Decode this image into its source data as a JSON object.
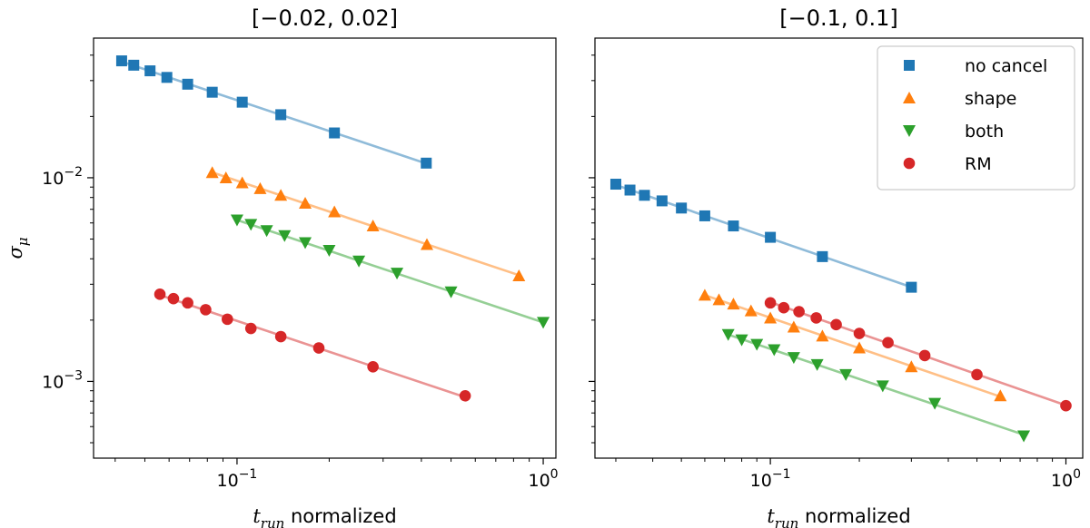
{
  "chart_data": [
    {
      "type": "scatter",
      "title": "[−0.02, 0.02]",
      "xscale": "log",
      "yscale": "log",
      "xlabel": "normalized",
      "xlabel_math": "t",
      "xlabel_math_sub": "run",
      "ylabel_math": "σ",
      "ylabel_math_sub": "μ",
      "xlim": [
        0.034,
        1.1
      ],
      "ylim": [
        0.00042,
        0.0485
      ],
      "x_ticks": [
        {
          "value": 0.1,
          "base": "10",
          "exp": "−1"
        },
        {
          "value": 1,
          "base": "10",
          "exp": "0"
        }
      ],
      "y_ticks": [
        {
          "value": 0.001,
          "base": "10",
          "exp": "−3"
        },
        {
          "value": 0.01,
          "base": "10",
          "exp": "−2"
        }
      ],
      "series": [
        {
          "name": "no cancel",
          "marker": "square",
          "color": "#1f77b4",
          "x": [
            0.042,
            0.046,
            0.052,
            0.059,
            0.069,
            0.083,
            0.104,
            0.139,
            0.208,
            0.415
          ],
          "y": [
            0.0375,
            0.0357,
            0.0335,
            0.0311,
            0.0288,
            0.0263,
            0.0235,
            0.0204,
            0.0166,
            0.0118
          ]
        },
        {
          "name": "shape",
          "marker": "triangle-up",
          "color": "#ff7f0e",
          "x": [
            0.083,
            0.092,
            0.104,
            0.119,
            0.139,
            0.167,
            0.208,
            0.278,
            0.417,
            0.833
          ],
          "y": [
            0.0106,
            0.01,
            0.00945,
            0.00885,
            0.0082,
            0.0075,
            0.0068,
            0.0058,
            0.0047,
            0.0033
          ]
        },
        {
          "name": "both",
          "marker": "triangle-down",
          "color": "#2ca02c",
          "x": [
            0.1,
            0.111,
            0.125,
            0.143,
            0.167,
            0.2,
            0.25,
            0.333,
            0.5,
            1.0
          ],
          "y": [
            0.0062,
            0.0059,
            0.0055,
            0.0052,
            0.0048,
            0.0044,
            0.0039,
            0.0034,
            0.00275,
            0.00195
          ]
        },
        {
          "name": "RM",
          "marker": "circle",
          "color": "#d62728",
          "x": [
            0.056,
            0.062,
            0.069,
            0.079,
            0.093,
            0.111,
            0.139,
            0.185,
            0.278,
            0.556
          ],
          "y": [
            0.00268,
            0.00255,
            0.00243,
            0.00225,
            0.00202,
            0.00182,
            0.00166,
            0.00146,
            0.00118,
            0.00085
          ]
        }
      ]
    },
    {
      "type": "scatter",
      "title": "[−0.1, 0.1]",
      "xscale": "log",
      "yscale": "log",
      "xlabel": "normalized",
      "xlabel_math": "t",
      "xlabel_math_sub": "run",
      "xlim": [
        0.0255,
        1.14
      ],
      "ylim": [
        0.00042,
        0.0485
      ],
      "legend": "top-right",
      "x_ticks": [
        {
          "value": 0.1,
          "base": "10",
          "exp": "−1"
        },
        {
          "value": 1,
          "base": "10",
          "exp": "0"
        }
      ],
      "y_ticks": [
        {
          "value": 0.001,
          "base": "10",
          "exp": "−3"
        },
        {
          "value": 0.01,
          "base": "10",
          "exp": "−2"
        }
      ],
      "series": [
        {
          "name": "no cancel",
          "marker": "square",
          "color": "#1f77b4",
          "x": [
            0.03,
            0.0335,
            0.0375,
            0.043,
            0.05,
            0.06,
            0.075,
            0.1,
            0.15,
            0.3
          ],
          "y": [
            0.0093,
            0.0087,
            0.0082,
            0.0077,
            0.0071,
            0.0065,
            0.0058,
            0.0051,
            0.0041,
            0.0029
          ]
        },
        {
          "name": "shape",
          "marker": "triangle-up",
          "color": "#ff7f0e",
          "x": [
            0.06,
            0.067,
            0.075,
            0.086,
            0.1,
            0.12,
            0.15,
            0.2,
            0.3,
            0.6
          ],
          "y": [
            0.00265,
            0.00252,
            0.0024,
            0.00222,
            0.00205,
            0.00185,
            0.00167,
            0.00146,
            0.00118,
            0.00085
          ]
        },
        {
          "name": "both",
          "marker": "triangle-down",
          "color": "#2ca02c",
          "x": [
            0.072,
            0.08,
            0.09,
            0.103,
            0.12,
            0.144,
            0.18,
            0.24,
            0.36,
            0.72
          ],
          "y": [
            0.0017,
            0.0016,
            0.00152,
            0.00143,
            0.00131,
            0.00121,
            0.00108,
            0.00095,
            0.00078,
            0.00054
          ]
        },
        {
          "name": "RM",
          "marker": "circle",
          "color": "#d62728",
          "x": [
            0.1,
            0.111,
            0.125,
            0.143,
            0.167,
            0.2,
            0.25,
            0.333,
            0.5,
            1.0
          ],
          "y": [
            0.00243,
            0.0023,
            0.0022,
            0.00205,
            0.0019,
            0.00172,
            0.00155,
            0.00134,
            0.00108,
            0.00076
          ]
        }
      ]
    }
  ]
}
